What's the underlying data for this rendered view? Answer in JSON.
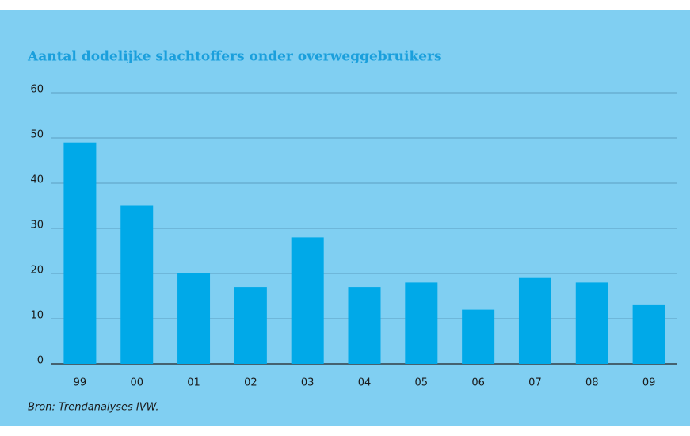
{
  "chart_data": {
    "type": "bar",
    "title": "Aantal dodelijke slachtoffers onder overweggebruikers",
    "categories": [
      "99",
      "00",
      "01",
      "02",
      "03",
      "04",
      "05",
      "06",
      "07",
      "08",
      "09"
    ],
    "values": [
      49,
      35,
      20,
      17,
      28,
      17,
      18,
      12,
      19,
      18,
      13
    ],
    "color": "#00a9e8",
    "ylim": [
      0,
      60
    ],
    "yticks": [
      0,
      10,
      20,
      30,
      40,
      50,
      60
    ],
    "grid": true,
    "source": "Bron: Trendanalyses IVW."
  }
}
